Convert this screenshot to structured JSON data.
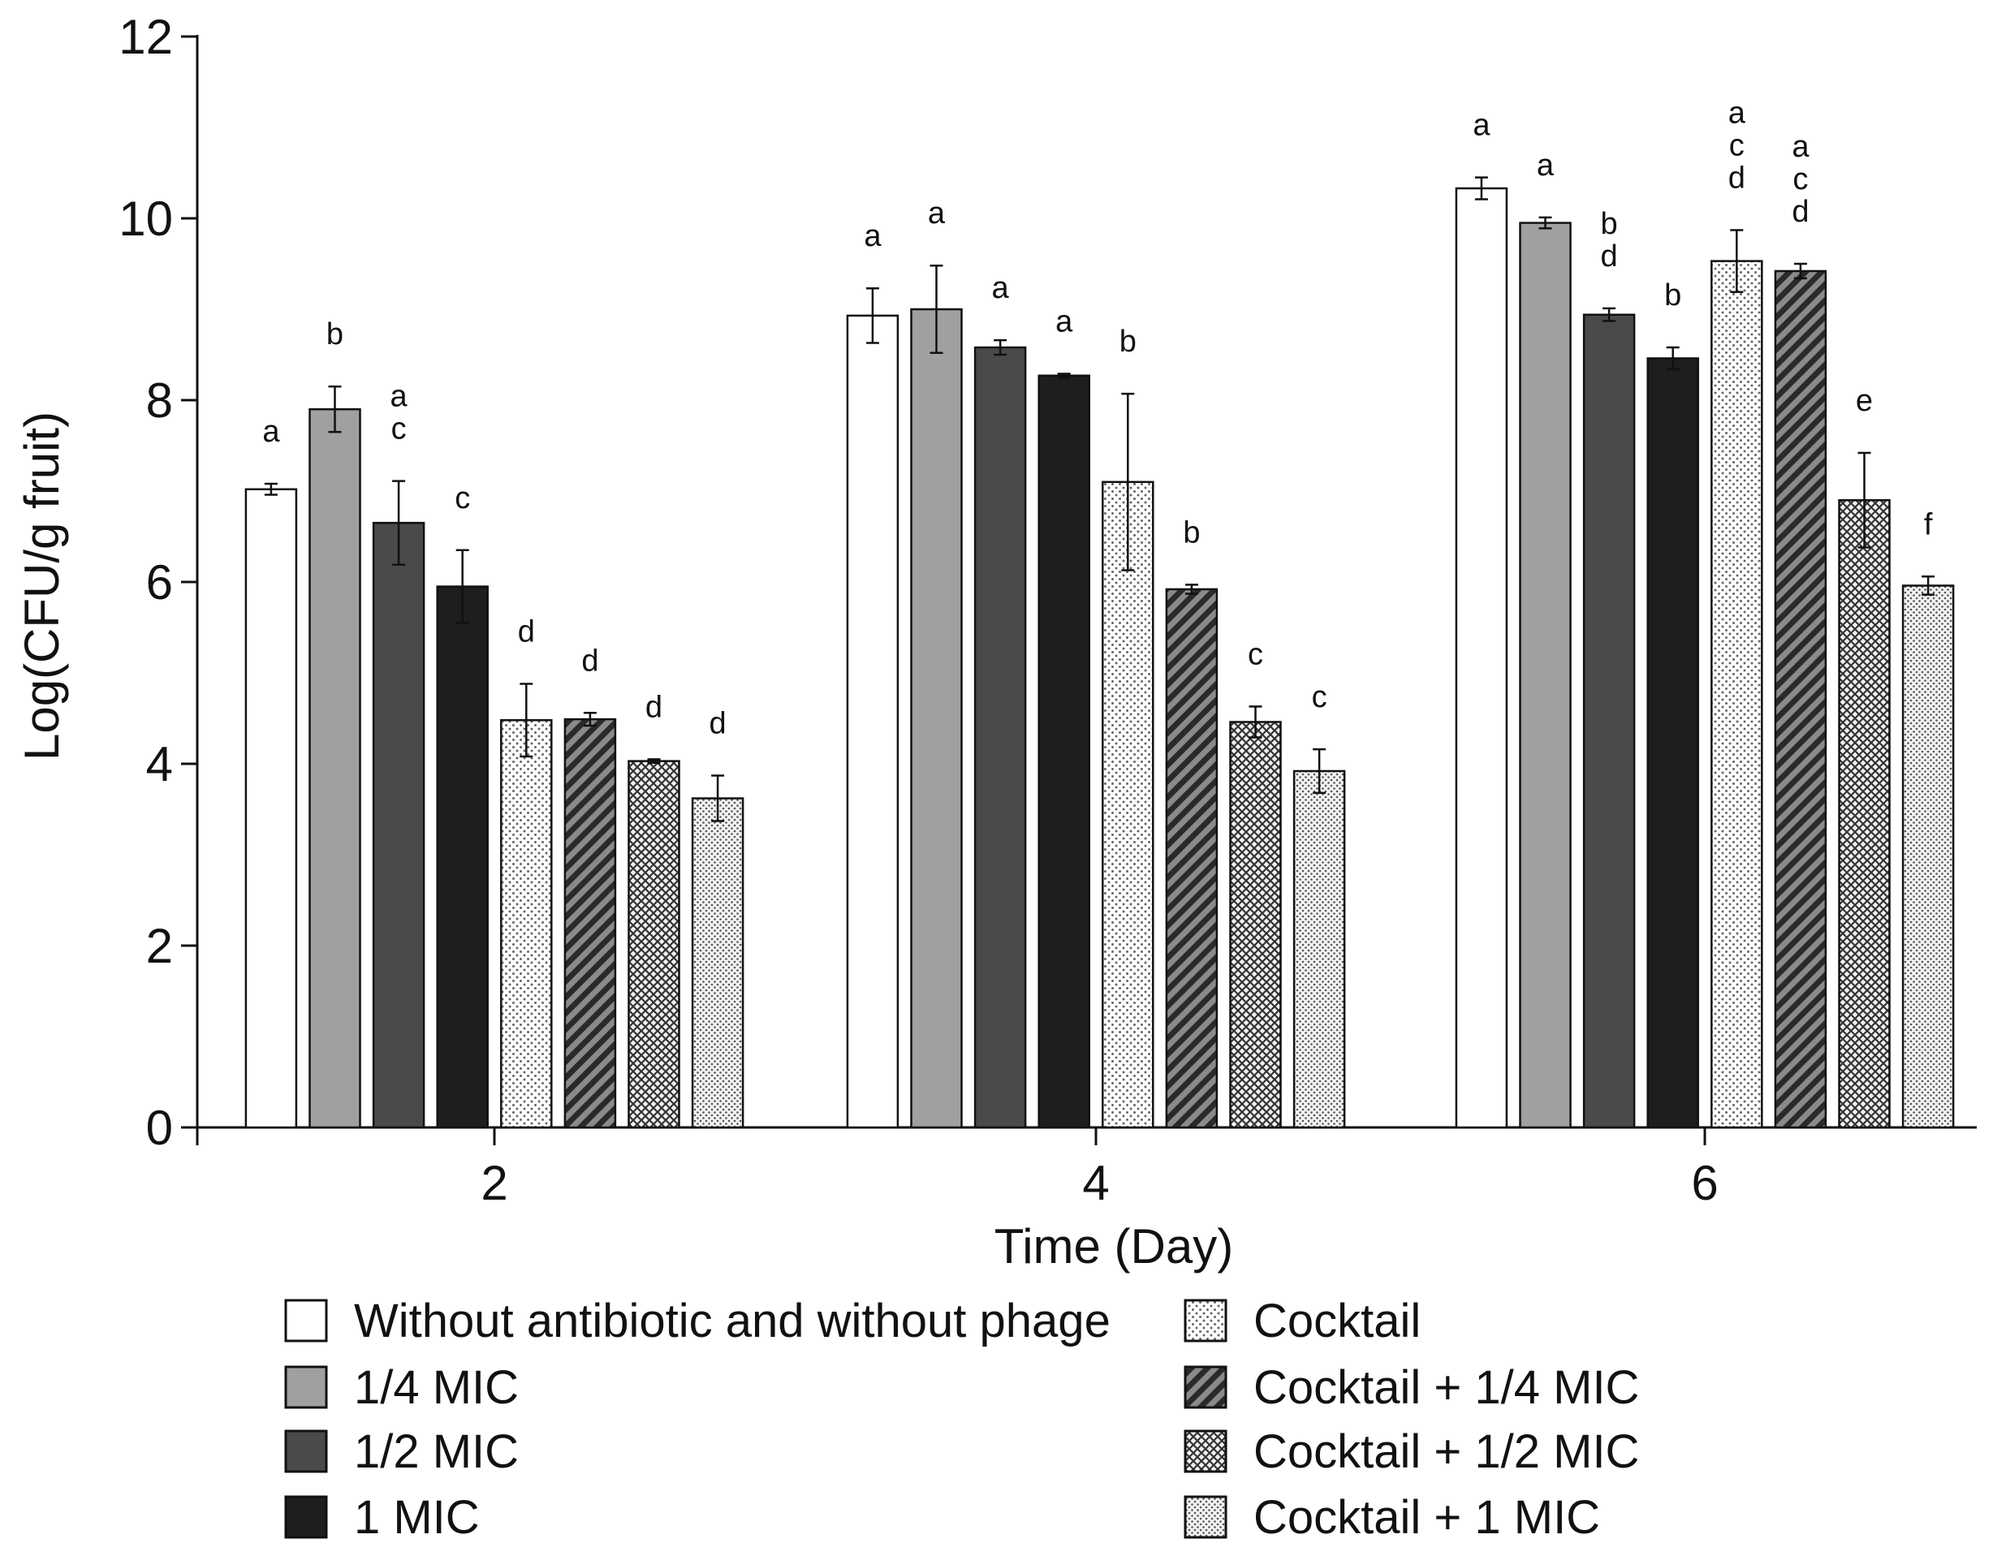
{
  "chart_data": {
    "type": "bar",
    "xlabel": "Time (Day)",
    "ylabel": "Log(CFU/g fruit)",
    "ylim": [
      0,
      12
    ],
    "yticks": [
      0,
      2,
      4,
      6,
      8,
      10,
      12
    ],
    "categories": [
      "2",
      "4",
      "6"
    ],
    "grid": false,
    "legend_position": "bottom",
    "series": [
      {
        "name": "Without antibiotic and without phage",
        "pattern": "white",
        "color": "#ffffff",
        "values": [
          7.02,
          8.93,
          10.33
        ],
        "errors": [
          0.06,
          0.3,
          0.12
        ],
        "letters": [
          [
            "a"
          ],
          [
            "a"
          ],
          [
            "a"
          ]
        ]
      },
      {
        "name": "1/4 MIC",
        "pattern": "solid",
        "color": "#a0a0a0",
        "values": [
          7.9,
          9.0,
          9.95
        ],
        "errors": [
          0.25,
          0.48,
          0.06
        ],
        "letters": [
          [
            "b"
          ],
          [
            "a"
          ],
          [
            "a"
          ]
        ]
      },
      {
        "name": "1/2 MIC",
        "pattern": "solid",
        "color": "#4a4a4a",
        "values": [
          6.65,
          8.58,
          8.94
        ],
        "errors": [
          0.46,
          0.08,
          0.07
        ],
        "letters": [
          [
            "a",
            "c"
          ],
          [
            "a"
          ],
          [
            "b",
            "d"
          ]
        ]
      },
      {
        "name": "1 MIC",
        "pattern": "solid",
        "color": "#1e1e1e",
        "values": [
          5.95,
          8.27,
          8.46
        ],
        "errors": [
          0.4,
          0.02,
          0.12
        ],
        "letters": [
          [
            "c"
          ],
          [
            "a"
          ],
          [
            "b"
          ]
        ]
      },
      {
        "name": "Cocktail",
        "pattern": "dots",
        "color": "#f4f4f4",
        "values": [
          4.48,
          7.1,
          9.53
        ],
        "errors": [
          0.4,
          0.97,
          0.34
        ],
        "letters": [
          [
            "d"
          ],
          [
            "b"
          ],
          [
            "a",
            "c",
            "d"
          ]
        ]
      },
      {
        "name": "Cocktail + 1/4 MIC",
        "pattern": "diagonal",
        "color": "#5a5a5a",
        "values": [
          4.49,
          5.92,
          9.42
        ],
        "errors": [
          0.07,
          0.05,
          0.08
        ],
        "letters": [
          [
            "d"
          ],
          [
            "b"
          ],
          [
            "a",
            "c",
            "d"
          ]
        ]
      },
      {
        "name": "Cocktail + 1/2 MIC",
        "pattern": "crosshatch",
        "color": "#888888",
        "values": [
          4.03,
          4.46,
          6.9
        ],
        "errors": [
          0.02,
          0.17,
          0.52
        ],
        "letters": [
          [
            "d"
          ],
          [
            "c"
          ],
          [
            "e"
          ]
        ]
      },
      {
        "name": "Cocktail + 1 MIC",
        "pattern": "finedots",
        "color": "#d8d8d8",
        "values": [
          3.62,
          3.92,
          5.96
        ],
        "errors": [
          0.25,
          0.24,
          0.1
        ],
        "letters": [
          [
            "d"
          ],
          [
            "c"
          ],
          [
            "f"
          ]
        ]
      }
    ]
  }
}
